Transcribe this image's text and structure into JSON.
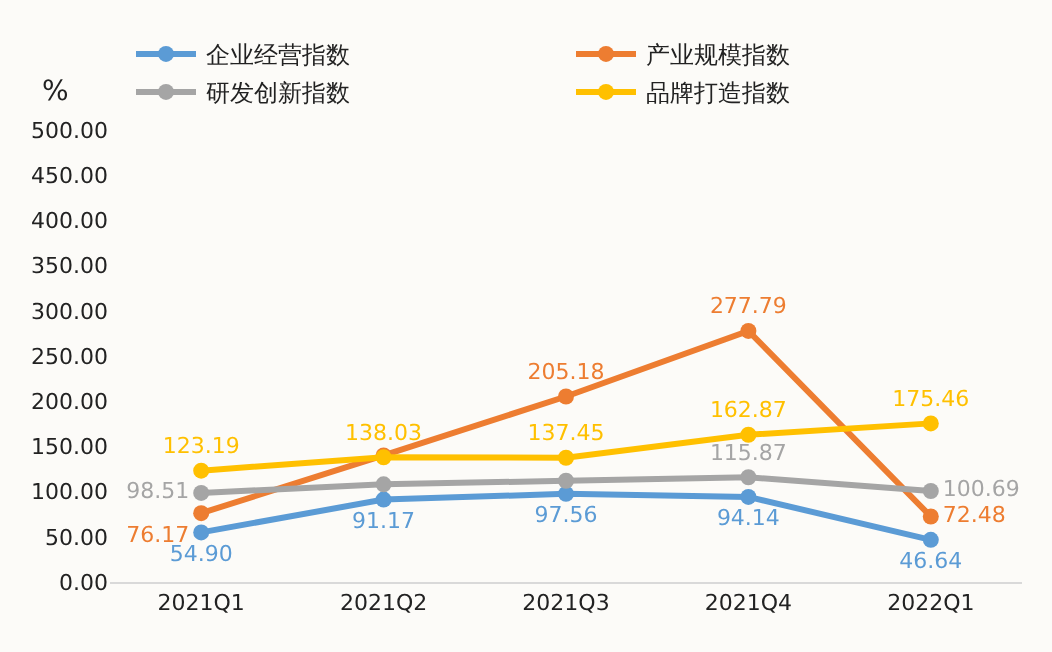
{
  "chart_data": {
    "type": "line",
    "ylabel": "%",
    "categories": [
      "2021Q1",
      "2021Q2",
      "2021Q3",
      "2021Q4",
      "2022Q1"
    ],
    "series": [
      {
        "name": "企业经营指数",
        "color": "#5b9bd5",
        "values": [
          54.9,
          91.17,
          97.56,
          94.14,
          46.64
        ],
        "value_labels": [
          "54.90",
          "91.17",
          "97.56",
          "94.14",
          "46.64"
        ]
      },
      {
        "name": "产业规模指数",
        "color": "#ed7d31",
        "values": [
          76.17,
          140,
          205.18,
          277.79,
          72.48
        ],
        "value_labels": [
          "76.17",
          null,
          "205.18",
          "277.79",
          "72.48"
        ]
      },
      {
        "name": "研发创新指数",
        "color": "#a5a5a5",
        "values": [
          98.51,
          108,
          112,
          115.87,
          100.69
        ],
        "value_labels": [
          "98.51",
          null,
          null,
          "115.87",
          "100.69"
        ]
      },
      {
        "name": "品牌打造指数",
        "color": "#ffc000",
        "values": [
          123.19,
          138.03,
          137.45,
          162.87,
          175.46
        ],
        "value_labels": [
          "123.19",
          "138.03",
          "137.45",
          "162.87",
          "175.46"
        ]
      }
    ],
    "ylim": [
      0,
      500
    ],
    "yticks": [
      {
        "value": 0,
        "label": "0.00"
      },
      {
        "value": 50,
        "label": "50.00"
      },
      {
        "value": 100,
        "label": "100.00"
      },
      {
        "value": 150,
        "label": "150.00"
      },
      {
        "value": 200,
        "label": "200.00"
      },
      {
        "value": 250,
        "label": "250.00"
      },
      {
        "value": 300,
        "label": "300.00"
      },
      {
        "value": 350,
        "label": "350.00"
      },
      {
        "value": 400,
        "label": "400.00"
      },
      {
        "value": 450,
        "label": "450.00"
      },
      {
        "value": 500,
        "label": "500.00"
      }
    ],
    "grid": false,
    "legend": "top",
    "marker": "circle",
    "line_style": "solid"
  }
}
